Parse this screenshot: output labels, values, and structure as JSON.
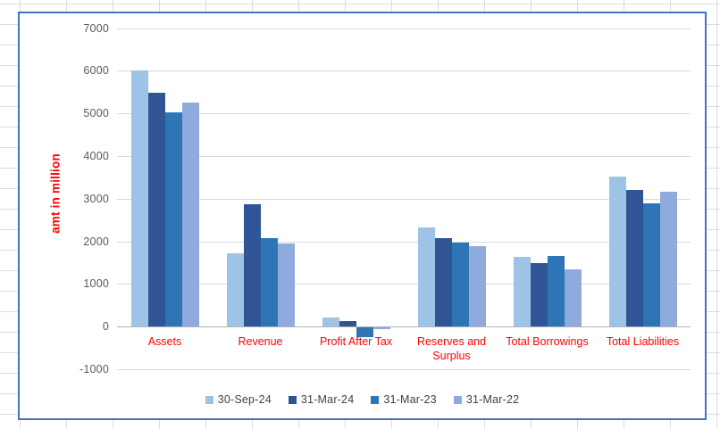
{
  "sheet": {
    "gridline_color": "#dcdcdc",
    "background": "#ffffff"
  },
  "chart": {
    "border_color": "#4472c4",
    "background": "#ffffff",
    "gridline_color": "#d9d9d9",
    "axis_line_color": "#b3b3b3",
    "tick_label_color": "#595959",
    "category_label_color": "#ff0000",
    "axis_title_color": "#ff0000",
    "legend_label_color": "#404040"
  },
  "chart_data": {
    "type": "bar",
    "title": "",
    "xlabel": "",
    "ylabel": "amt in million",
    "ylim": [
      -1000,
      7000
    ],
    "ytick_step": 1000,
    "grid": true,
    "legend_position": "bottom",
    "categories": [
      "Assets",
      "Revenue",
      "Profit After Tax",
      "Reserves and Surplus",
      "Total Borrowings",
      "Total Liabilities"
    ],
    "series": [
      {
        "name": "30-Sep-24",
        "color": "#9dc3e6",
        "values": [
          6010,
          1720,
          220,
          2330,
          1630,
          3510
        ]
      },
      {
        "name": "31-Mar-24",
        "color": "#2f5597",
        "values": [
          5490,
          2860,
          120,
          2080,
          1490,
          3200
        ]
      },
      {
        "name": "31-Mar-23",
        "color": "#2e75b6",
        "values": [
          5020,
          2080,
          -240,
          1960,
          1660,
          2880
        ]
      },
      {
        "name": "31-Mar-22",
        "color": "#8faadc",
        "values": [
          5250,
          1940,
          -60,
          1890,
          1340,
          3170
        ]
      }
    ]
  }
}
